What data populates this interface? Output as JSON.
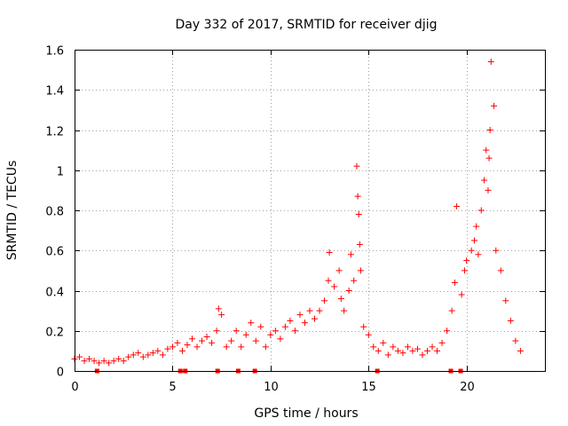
{
  "chart_data": {
    "type": "scatter",
    "title": "Day 332 of 2017, SRMTID for receiver djig",
    "xlabel": "GPS time / hours",
    "ylabel": "SRMTID / TECUs",
    "xlim": [
      0,
      24
    ],
    "ylim": [
      0,
      1.6
    ],
    "xticks": [
      0,
      5,
      10,
      15,
      20
    ],
    "yticks": [
      0,
      0.2,
      0.4,
      0.6,
      0.8,
      1,
      1.2,
      1.4,
      1.6
    ],
    "xtick_labels": [
      "0",
      "5",
      "10",
      "15",
      "20"
    ],
    "ytick_labels": [
      "0",
      "0.2",
      "0.4",
      "0.6",
      "0.8",
      "1",
      "1.2",
      "1.4",
      "1.6"
    ],
    "grid": true,
    "marker": "plus",
    "color": "#ff0000",
    "series": [
      {
        "name": "SRMTID",
        "x": [
          0.0,
          0.25,
          0.5,
          0.75,
          1.0,
          1.25,
          1.5,
          1.75,
          2.0,
          2.25,
          2.5,
          2.75,
          3.0,
          3.25,
          3.5,
          3.75,
          4.0,
          4.25,
          4.5,
          4.75,
          5.0,
          5.25,
          5.5,
          5.75,
          6.0,
          6.25,
          6.5,
          6.75,
          7.0,
          7.25,
          7.35,
          7.5,
          7.75,
          8.0,
          8.25,
          8.5,
          8.75,
          9.0,
          9.25,
          9.5,
          9.75,
          10.0,
          10.25,
          10.5,
          10.75,
          11.0,
          11.25,
          11.5,
          11.75,
          12.0,
          12.25,
          12.5,
          12.75,
          12.95,
          13.0,
          13.25,
          13.5,
          13.6,
          13.75,
          14.0,
          14.1,
          14.25,
          14.4,
          14.45,
          14.5,
          14.55,
          14.6,
          14.75,
          15.0,
          15.25,
          15.5,
          15.75,
          16.0,
          16.25,
          16.5,
          16.75,
          17.0,
          17.25,
          17.5,
          17.75,
          18.0,
          18.25,
          18.5,
          18.75,
          19.0,
          19.25,
          19.4,
          19.5,
          19.75,
          19.9,
          20.0,
          20.25,
          20.4,
          20.5,
          20.6,
          20.75,
          20.9,
          21.0,
          21.1,
          21.15,
          21.2,
          21.25,
          21.4,
          21.5,
          21.75,
          22.0,
          22.25,
          22.5,
          22.75
        ],
        "y": [
          0.06,
          0.07,
          0.05,
          0.06,
          0.05,
          0.04,
          0.05,
          0.04,
          0.05,
          0.06,
          0.05,
          0.07,
          0.08,
          0.09,
          0.07,
          0.08,
          0.09,
          0.1,
          0.08,
          0.11,
          0.12,
          0.14,
          0.1,
          0.13,
          0.16,
          0.12,
          0.15,
          0.17,
          0.14,
          0.2,
          0.31,
          0.28,
          0.12,
          0.15,
          0.2,
          0.12,
          0.18,
          0.24,
          0.15,
          0.22,
          0.12,
          0.18,
          0.2,
          0.16,
          0.22,
          0.25,
          0.2,
          0.28,
          0.24,
          0.3,
          0.26,
          0.3,
          0.35,
          0.45,
          0.59,
          0.42,
          0.5,
          0.36,
          0.3,
          0.4,
          0.58,
          0.45,
          1.02,
          0.87,
          0.78,
          0.63,
          0.5,
          0.22,
          0.18,
          0.12,
          0.1,
          0.14,
          0.08,
          0.12,
          0.1,
          0.09,
          0.12,
          0.1,
          0.11,
          0.08,
          0.1,
          0.12,
          0.1,
          0.14,
          0.2,
          0.3,
          0.44,
          0.82,
          0.38,
          0.5,
          0.55,
          0.6,
          0.65,
          0.72,
          0.58,
          0.8,
          0.95,
          1.1,
          0.9,
          1.06,
          1.2,
          1.54,
          1.32,
          0.6,
          0.5,
          0.35,
          0.25,
          0.15,
          0.1
        ]
      }
    ],
    "bottom_markers_x": [
      1.15,
      5.4,
      5.65,
      7.3,
      8.35,
      9.2,
      15.45,
      19.2,
      19.7
    ]
  }
}
